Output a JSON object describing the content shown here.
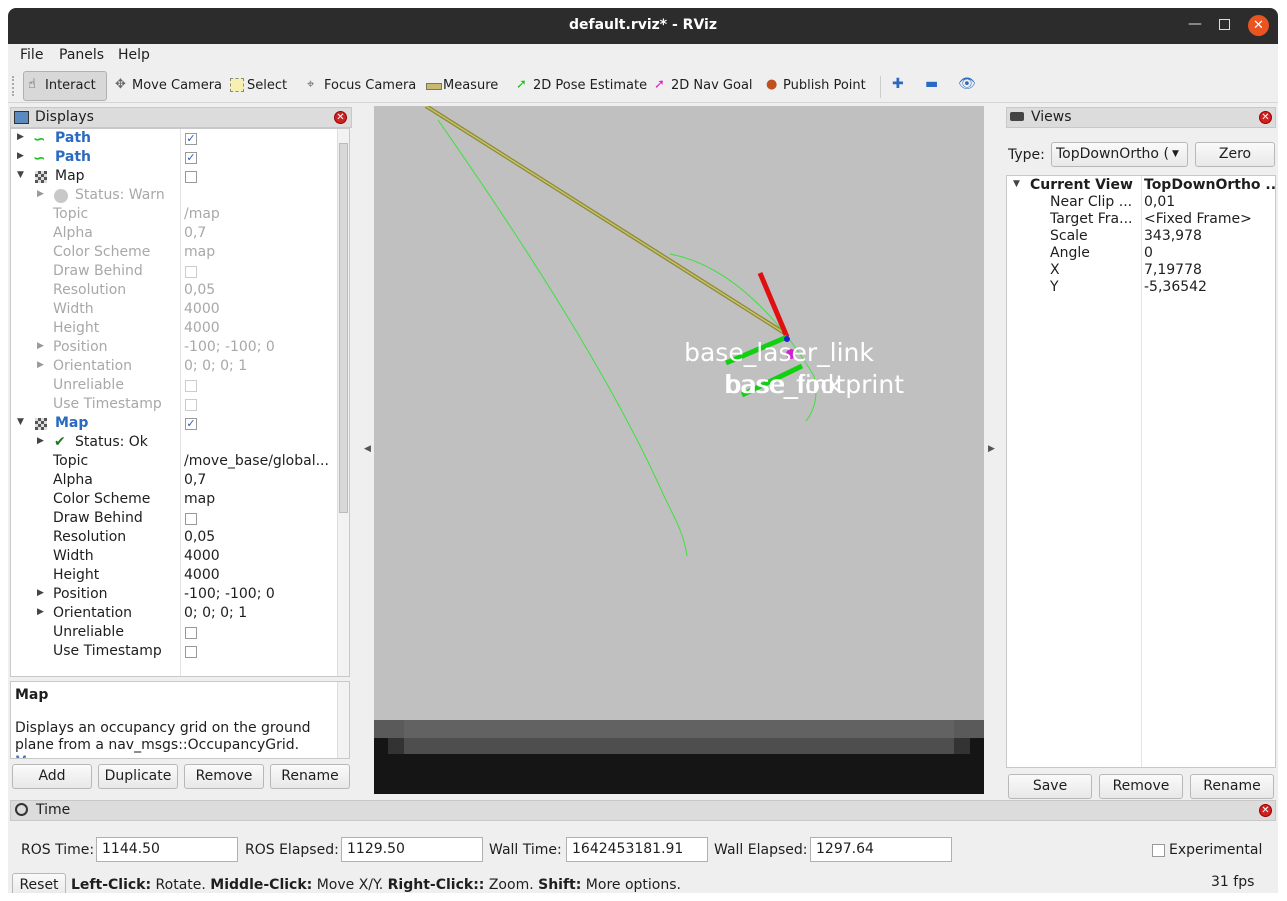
{
  "window": {
    "title": "default.rviz* - RViz"
  },
  "menu": [
    "File",
    "Panels",
    "Help"
  ],
  "toolbar": [
    "Interact",
    "Move Camera",
    "Select",
    "Focus Camera",
    "Measure",
    "2D Pose Estimate",
    "2D Nav Goal",
    "Publish Point"
  ],
  "displays": {
    "title": "Displays",
    "rows": [
      {
        "label": "Path",
        "checked": true
      },
      {
        "label": "Path",
        "checked": true
      },
      {
        "label": "Map",
        "checked": false
      },
      {
        "label": "Status: Warn"
      },
      {
        "label": "Topic",
        "value": "/map"
      },
      {
        "label": "Alpha",
        "value": "0,7"
      },
      {
        "label": "Color Scheme",
        "value": "map"
      },
      {
        "label": "Draw Behind",
        "checked": false
      },
      {
        "label": "Resolution",
        "value": "0,05"
      },
      {
        "label": "Width",
        "value": "4000"
      },
      {
        "label": "Height",
        "value": "4000"
      },
      {
        "label": "Position",
        "value": "-100; -100; 0"
      },
      {
        "label": "Orientation",
        "value": "0; 0; 0; 1"
      },
      {
        "label": "Unreliable",
        "checked": false
      },
      {
        "label": "Use Timestamp",
        "checked": false
      },
      {
        "label": "Map",
        "checked": true
      },
      {
        "label": "Status: Ok"
      },
      {
        "label": "Topic",
        "value": "/move_base/global..."
      },
      {
        "label": "Alpha",
        "value": "0,7"
      },
      {
        "label": "Color Scheme",
        "value": "map"
      },
      {
        "label": "Draw Behind",
        "checked": false
      },
      {
        "label": "Resolution",
        "value": "0,05"
      },
      {
        "label": "Width",
        "value": "4000"
      },
      {
        "label": "Height",
        "value": "4000"
      },
      {
        "label": "Position",
        "value": "-100; -100; 0"
      },
      {
        "label": "Orientation",
        "value": "0; 0; 0; 1"
      },
      {
        "label": "Unreliable",
        "checked": false
      },
      {
        "label": "Use Timestamp",
        "checked": false
      }
    ],
    "description": {
      "title": "Map",
      "text": "Displays an occupancy grid on the ground plane from a nav_msgs::OccupancyGrid.",
      "link": "More"
    },
    "buttons": [
      "Add",
      "Duplicate",
      "Remove",
      "Rename"
    ]
  },
  "viewport": {
    "frames": [
      "base_laser_link",
      "base_footprint",
      "base_link"
    ]
  },
  "views": {
    "title": "Views",
    "type_label": "Type:",
    "type_value": "TopDownOrtho (",
    "zero": "Zero",
    "properties": [
      {
        "name": "Current View",
        "value": "TopDownOrtho ..."
      },
      {
        "name": "Near Clip ...",
        "value": "0,01"
      },
      {
        "name": "Target Fra...",
        "value": "<Fixed Frame>"
      },
      {
        "name": "Scale",
        "value": "343,978"
      },
      {
        "name": "Angle",
        "value": "0"
      },
      {
        "name": "X",
        "value": "7,19778"
      },
      {
        "name": "Y",
        "value": "-5,36542"
      }
    ],
    "buttons": [
      "Save",
      "Remove",
      "Rename"
    ]
  },
  "time": {
    "title": "Time",
    "fields": [
      {
        "label": "ROS Time:",
        "value": "1144.50"
      },
      {
        "label": "ROS Elapsed:",
        "value": "1129.50"
      },
      {
        "label": "Wall Time:",
        "value": "1642453181.91"
      },
      {
        "label": "Wall Elapsed:",
        "value": "1297.64"
      }
    ],
    "experimental": "Experimental",
    "reset": "Reset",
    "hint": [
      {
        "key": "Left-Click:",
        "text": "Rotate."
      },
      {
        "key": "Middle-Click:",
        "text": "Move X/Y."
      },
      {
        "key": "Right-Click::",
        "text": "Zoom."
      },
      {
        "key": "Shift:",
        "text": "More options."
      }
    ],
    "fps": "31 fps"
  }
}
